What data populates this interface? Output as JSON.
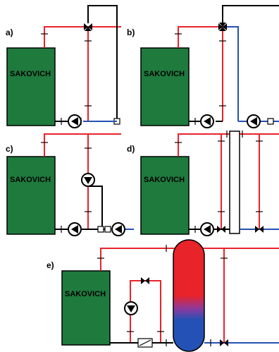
{
  "diagrams": [
    {
      "id": "a",
      "label": "a)"
    },
    {
      "id": "b",
      "label": "b)"
    },
    {
      "id": "c",
      "label": "c)"
    },
    {
      "id": "d",
      "label": "d)"
    },
    {
      "id": "e",
      "label": "e)"
    }
  ],
  "boiler": {
    "brand_text": "SAKOVICH",
    "body_color": "#1f7a3e"
  },
  "colors": {
    "supply_hot": "#e8232a",
    "return_cold": "#2451b5",
    "tank_top": "#e8232a",
    "tank_bottom": "#2451b5"
  }
}
